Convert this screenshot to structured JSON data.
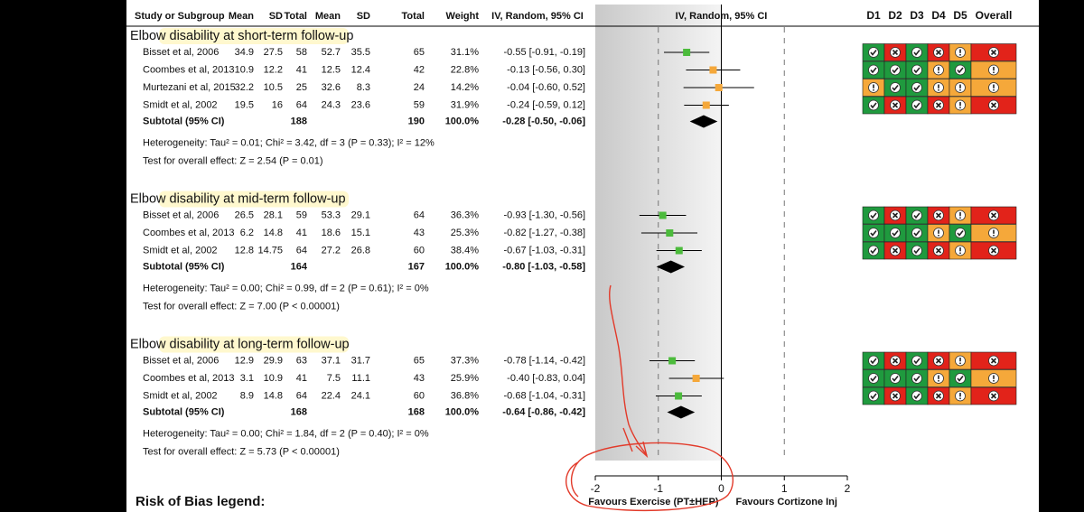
{
  "chart_data": {
    "type": "forest",
    "columns": [
      "Study or Subgroup",
      "Mean",
      "SD",
      "Total",
      "Mean",
      "SD",
      "Total",
      "Weight",
      "IV, Random, 95% CI",
      "IV, Random, 95% CI"
    ],
    "rob_columns": [
      "D1",
      "D2",
      "D3",
      "D4",
      "D5",
      "Overall"
    ],
    "rob_colors": {
      "low": "#1f9a3e",
      "high": "#e2231a",
      "some": "#f5a83a"
    },
    "xlim": [
      -2,
      2
    ],
    "xticks": [
      -2,
      -1,
      0,
      1,
      2
    ],
    "x_label_left": "Favours Exercise (PT±HEP)",
    "x_label_right": "Favours Cortizone Inj",
    "legend_title": "Risk of Bias legend:",
    "groups": [
      {
        "title": "Elbow disability at short-term follow-up",
        "studies": [
          {
            "name": "Bisset et al, 2006",
            "values": [
              34.9,
              27.5,
              58,
              52.7,
              35.5,
              65
            ],
            "weight": "31.1%",
            "estimate": -0.55,
            "ci": [
              -0.91,
              -0.19
            ],
            "ci_label": "-0.55 [-0.91, -0.19]",
            "color": "#4cbb3c",
            "rob": [
              "low",
              "high",
              "low",
              "high",
              "some",
              "high"
            ]
          },
          {
            "name": "Coombes et al, 2013",
            "values": [
              10.9,
              12.2,
              41,
              12.5,
              12.4,
              42
            ],
            "weight": "22.8%",
            "estimate": -0.13,
            "ci": [
              -0.56,
              0.3
            ],
            "ci_label": "-0.13 [-0.56, 0.30]",
            "color": "#f5a83a",
            "rob": [
              "low",
              "low",
              "low",
              "some",
              "low",
              "some"
            ]
          },
          {
            "name": "Murtezani et al, 2015",
            "values": [
              32.2,
              10.5,
              25,
              32.6,
              8.3,
              24
            ],
            "weight": "14.2%",
            "estimate": -0.04,
            "ci": [
              -0.6,
              0.52
            ],
            "ci_label": "-0.04 [-0.60, 0.52]",
            "color": "#f5a83a",
            "rob": [
              "some",
              "low",
              "low",
              "some",
              "some",
              "some"
            ]
          },
          {
            "name": "Smidt et al, 2002",
            "values": [
              19.5,
              16,
              64,
              24.3,
              23.6,
              59
            ],
            "weight": "31.9%",
            "estimate": -0.24,
            "ci": [
              -0.59,
              0.12
            ],
            "ci_label": "-0.24 [-0.59, 0.12]",
            "color": "#f5a83a",
            "rob": [
              "low",
              "high",
              "low",
              "high",
              "some",
              "high"
            ]
          }
        ],
        "subtotal": {
          "name": "Subtotal (95% CI)",
          "totals": [
            188,
            190
          ],
          "weight": "100.0%",
          "estimate": -0.28,
          "ci": [
            -0.5,
            -0.06
          ],
          "ci_label": "-0.28 [-0.50, -0.06]"
        },
        "heterogeneity": "Heterogeneity: Tau² = 0.01; Chi² = 3.42, df = 3 (P = 0.33); I² = 12%",
        "overall_effect": "Test for overall effect: Z = 2.54 (P = 0.01)"
      },
      {
        "title": "Elbow disability at mid-term follow-up",
        "studies": [
          {
            "name": "Bisset et al, 2006",
            "values": [
              26.5,
              28.1,
              59,
              53.3,
              29.1,
              64
            ],
            "weight": "36.3%",
            "estimate": -0.93,
            "ci": [
              -1.3,
              -0.56
            ],
            "ci_label": "-0.93 [-1.30, -0.56]",
            "color": "#4cbb3c",
            "rob": [
              "low",
              "high",
              "low",
              "high",
              "some",
              "high"
            ]
          },
          {
            "name": "Coombes et al, 2013",
            "values": [
              6.2,
              14.8,
              41,
              18.6,
              15.1,
              43
            ],
            "weight": "25.3%",
            "estimate": -0.82,
            "ci": [
              -1.27,
              -0.38
            ],
            "ci_label": "-0.82 [-1.27, -0.38]",
            "color": "#4cbb3c",
            "rob": [
              "low",
              "low",
              "low",
              "some",
              "low",
              "some"
            ]
          },
          {
            "name": "Smidt et al, 2002",
            "values": [
              12.8,
              14.75,
              64,
              27.2,
              26.8,
              60
            ],
            "weight": "38.4%",
            "estimate": -0.67,
            "ci": [
              -1.03,
              -0.31
            ],
            "ci_label": "-0.67 [-1.03, -0.31]",
            "color": "#4cbb3c",
            "rob": [
              "low",
              "high",
              "low",
              "high",
              "some",
              "high"
            ]
          }
        ],
        "subtotal": {
          "name": "Subtotal (95% CI)",
          "totals": [
            164,
            167
          ],
          "weight": "100.0%",
          "estimate": -0.8,
          "ci": [
            -1.03,
            -0.58
          ],
          "ci_label": "-0.80 [-1.03, -0.58]"
        },
        "heterogeneity": "Heterogeneity: Tau² = 0.00; Chi² = 0.99, df = 2 (P = 0.61); I² = 0%",
        "overall_effect": "Test for overall effect: Z = 7.00 (P < 0.00001)"
      },
      {
        "title": "Elbow disability at long-term follow-up",
        "studies": [
          {
            "name": "Bisset et al, 2006",
            "values": [
              12.9,
              29.9,
              63,
              37.1,
              31.7,
              65
            ],
            "weight": "37.3%",
            "estimate": -0.78,
            "ci": [
              -1.14,
              -0.42
            ],
            "ci_label": "-0.78 [-1.14, -0.42]",
            "color": "#4cbb3c",
            "rob": [
              "low",
              "high",
              "low",
              "high",
              "some",
              "high"
            ]
          },
          {
            "name": "Coombes et al, 2013",
            "values": [
              3.1,
              10.9,
              41,
              7.5,
              11.1,
              43
            ],
            "weight": "25.9%",
            "estimate": -0.4,
            "ci": [
              -0.83,
              0.04
            ],
            "ci_label": "-0.40 [-0.83, 0.04]",
            "color": "#f5a83a",
            "rob": [
              "low",
              "low",
              "low",
              "some",
              "low",
              "some"
            ]
          },
          {
            "name": "Smidt et al, 2002",
            "values": [
              8.9,
              14.8,
              64,
              22.4,
              24.1,
              60
            ],
            "weight": "36.8%",
            "estimate": -0.68,
            "ci": [
              -1.04,
              -0.31
            ],
            "ci_label": "-0.68 [-1.04, -0.31]",
            "color": "#4cbb3c",
            "rob": [
              "low",
              "high",
              "low",
              "high",
              "some",
              "high"
            ]
          }
        ],
        "subtotal": {
          "name": "Subtotal (95% CI)",
          "totals": [
            168,
            168
          ],
          "weight": "100.0%",
          "estimate": -0.64,
          "ci": [
            -0.86,
            -0.42
          ],
          "ci_label": "-0.64 [-0.86, -0.42]"
        },
        "heterogeneity": "Heterogeneity: Tau² = 0.00; Chi² = 1.84, df = 2 (P = 0.40); I² = 0%",
        "overall_effect": "Test for overall effect: Z = 5.73 (P < 0.00001)"
      }
    ]
  }
}
